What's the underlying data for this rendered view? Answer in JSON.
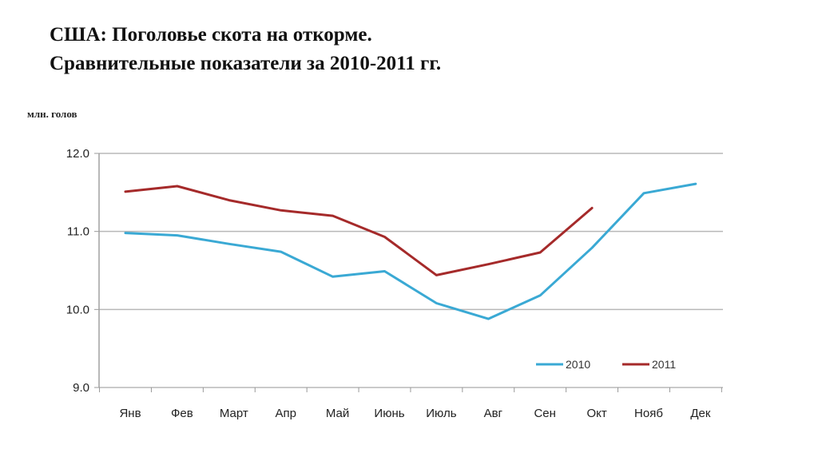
{
  "chart_data": {
    "type": "line",
    "title": "США: Поголовье скота на откорме.",
    "subtitle": "Сравнительные показатели за 2010-2011 гг.",
    "ylabel": "млн. голов",
    "xlabel": "",
    "categories": [
      "Янв",
      "Фев",
      "Март",
      "Апр",
      "Май",
      "Июнь",
      "Июль",
      "Авг",
      "Сен",
      "Окт",
      "Нояб",
      "Дек"
    ],
    "ylim": [
      9.0,
      12.0
    ],
    "yticks": [
      "12.0",
      "11.0",
      "10.0",
      "9.0"
    ],
    "grid": true,
    "legend_position": "bottom-right",
    "series": [
      {
        "name": "2010",
        "color": "#3aa9d4",
        "values": [
          10.98,
          10.95,
          10.84,
          10.74,
          10.42,
          10.49,
          10.08,
          9.88,
          10.18,
          10.79,
          11.49,
          11.61
        ]
      },
      {
        "name": "2011",
        "color": "#a52a2a",
        "values": [
          11.51,
          11.58,
          11.4,
          11.27,
          11.2,
          10.93,
          10.44,
          10.58,
          10.73,
          11.3,
          null,
          null
        ]
      }
    ]
  }
}
